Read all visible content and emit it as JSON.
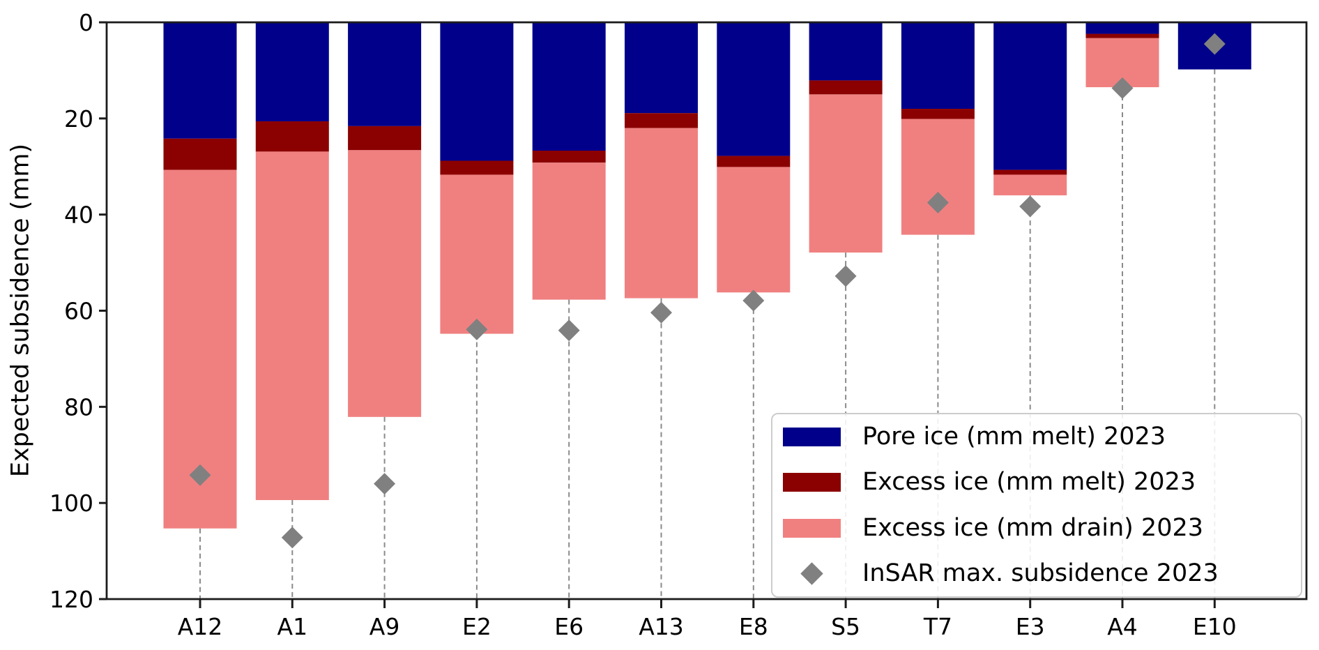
{
  "chart_data": {
    "type": "bar",
    "stacked": true,
    "note": "bars hang downward from 0 on an inverted y-axis; gray dashed guide line drops from each bar end to the bottom axis",
    "title": "",
    "xlabel": "",
    "ylabel": "Expected subsidence (mm)",
    "ylim": [
      0,
      120
    ],
    "yticks": [
      0,
      20,
      40,
      60,
      80,
      100,
      120
    ],
    "categories": [
      "A12",
      "A1",
      "A9",
      "E2",
      "E6",
      "A13",
      "E8",
      "S5",
      "T7",
      "E3",
      "A4",
      "E10"
    ],
    "series": [
      {
        "name": "Pore ice (mm melt) 2023",
        "color": "#00008b",
        "values": [
          24.2,
          20.6,
          21.6,
          28.8,
          26.7,
          18.9,
          27.8,
          12.1,
          18.0,
          30.7,
          2.4,
          9.8
        ]
      },
      {
        "name": "Excess ice (mm melt) 2023",
        "color": "#8b0000",
        "values": [
          6.5,
          6.3,
          5.0,
          2.9,
          2.5,
          3.1,
          2.3,
          2.9,
          2.1,
          1.0,
          0.9,
          0
        ]
      },
      {
        "name": "Excess ice (mm drain) 2023",
        "color": "#f08080",
        "values": [
          74.6,
          72.5,
          55.5,
          33.1,
          28.5,
          35.4,
          26.1,
          32.9,
          24.1,
          4.3,
          10.2,
          0
        ]
      }
    ],
    "scatter": {
      "name": "InSAR max. subsidence 2023",
      "color": "#808080",
      "marker": "diamond",
      "values": [
        94.2,
        107.2,
        96.0,
        63.9,
        64.1,
        60.4,
        57.9,
        52.8,
        37.5,
        38.3,
        13.7,
        4.5
      ]
    },
    "legend_position": "lower right",
    "grid": false,
    "guide_line_color": "#8a8a8a",
    "axis_color": "#1c1c1c"
  }
}
